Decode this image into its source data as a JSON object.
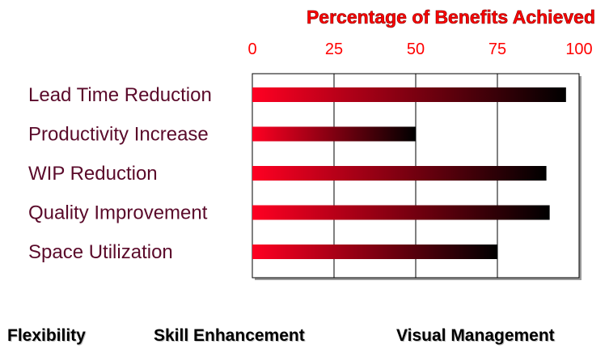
{
  "chart_data": {
    "type": "bar",
    "orientation": "horizontal",
    "title": "Percentage of Benefits Achieved",
    "categories": [
      "Lead Time Reduction",
      "Productivity Increase",
      "WIP Reduction",
      "Quality Improvement",
      "Space Utilization"
    ],
    "values": [
      96,
      50,
      90,
      91,
      75
    ],
    "xlim": [
      0,
      100
    ],
    "xticks": [
      "0",
      "25",
      "50",
      "75",
      "100"
    ],
    "axis_position": "top",
    "grid": true,
    "bar_color_start": "#ff0022",
    "bar_color_end": "#000000",
    "title_color": "#ff0000",
    "tick_color": "#ff0000",
    "label_color": "#5a0a2a"
  },
  "footer": {
    "items": [
      "Flexibility",
      "Skill Enhancement",
      "Visual Management"
    ]
  }
}
